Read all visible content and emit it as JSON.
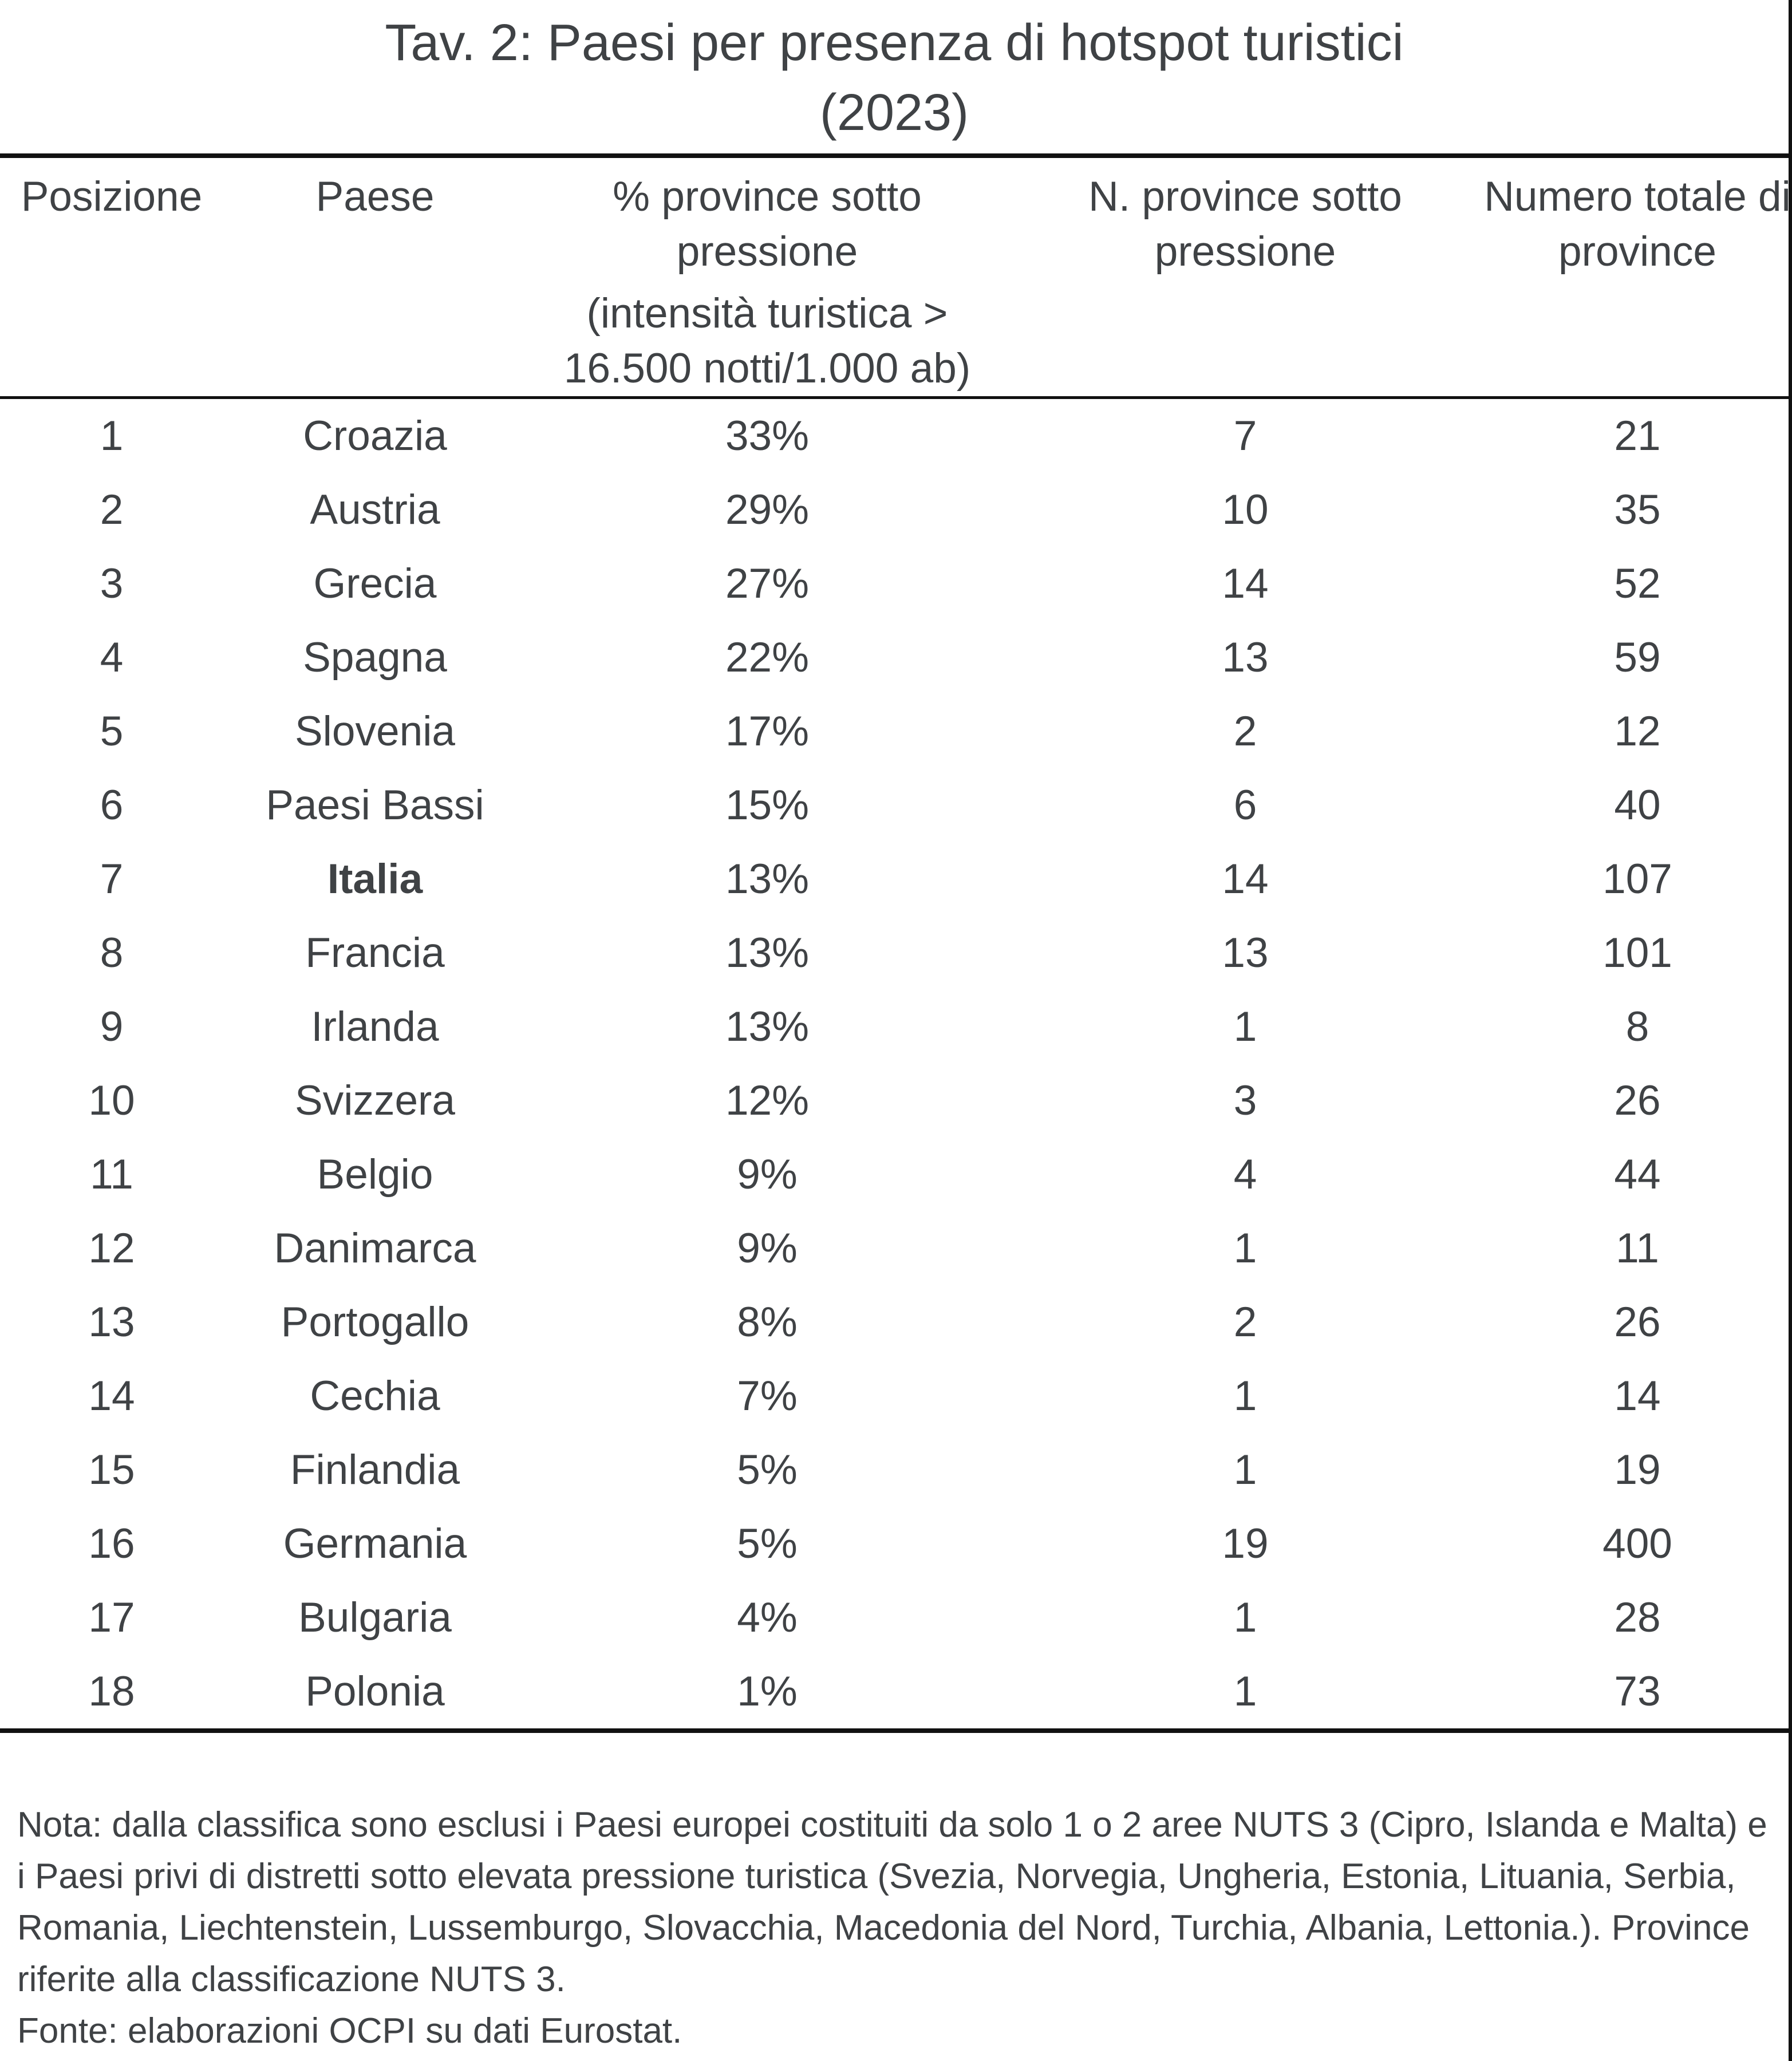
{
  "page": {
    "title_line1": "Tav. 2: Paesi per presenza di hotspot turistici",
    "title_line2": "(2023)"
  },
  "table": {
    "headers": [
      {
        "id": "posizione",
        "lines": [
          "Posizione"
        ]
      },
      {
        "id": "paese",
        "lines": [
          "Paese"
        ]
      },
      {
        "id": "pct",
        "lines": [
          "% province sotto",
          "pressione",
          "(intensità turistica >",
          "16.500 notti/1.000 ab)"
        ]
      },
      {
        "id": "n",
        "lines": [
          "N. province sotto",
          "pressione"
        ]
      },
      {
        "id": "tot",
        "lines": [
          "Numero totale di",
          "province"
        ]
      }
    ],
    "rows": [
      {
        "posizione": "1",
        "paese": "Croazia",
        "pct": "33%",
        "n": "7",
        "tot": "21",
        "bold": false
      },
      {
        "posizione": "2",
        "paese": "Austria",
        "pct": "29%",
        "n": "10",
        "tot": "35",
        "bold": false
      },
      {
        "posizione": "3",
        "paese": "Grecia",
        "pct": "27%",
        "n": "14",
        "tot": "52",
        "bold": false
      },
      {
        "posizione": "4",
        "paese": "Spagna",
        "pct": "22%",
        "n": "13",
        "tot": "59",
        "bold": false
      },
      {
        "posizione": "5",
        "paese": "Slovenia",
        "pct": "17%",
        "n": "2",
        "tot": "12",
        "bold": false
      },
      {
        "posizione": "6",
        "paese": "Paesi Bassi",
        "pct": "15%",
        "n": "6",
        "tot": "40",
        "bold": false
      },
      {
        "posizione": "7",
        "paese": "Italia",
        "pct": "13%",
        "n": "14",
        "tot": "107",
        "bold": true
      },
      {
        "posizione": "8",
        "paese": "Francia",
        "pct": "13%",
        "n": "13",
        "tot": "101",
        "bold": false
      },
      {
        "posizione": "9",
        "paese": "Irlanda",
        "pct": "13%",
        "n": "1",
        "tot": "8",
        "bold": false
      },
      {
        "posizione": "10",
        "paese": "Svizzera",
        "pct": "12%",
        "n": "3",
        "tot": "26",
        "bold": false
      },
      {
        "posizione": "11",
        "paese": "Belgio",
        "pct": "9%",
        "n": "4",
        "tot": "44",
        "bold": false
      },
      {
        "posizione": "12",
        "paese": "Danimarca",
        "pct": "9%",
        "n": "1",
        "tot": "11",
        "bold": false
      },
      {
        "posizione": "13",
        "paese": "Portogallo",
        "pct": "8%",
        "n": "2",
        "tot": "26",
        "bold": false
      },
      {
        "posizione": "14",
        "paese": "Cechia",
        "pct": "7%",
        "n": "1",
        "tot": "14",
        "bold": false
      },
      {
        "posizione": "15",
        "paese": "Finlandia",
        "pct": "5%",
        "n": "1",
        "tot": "19",
        "bold": false
      },
      {
        "posizione": "16",
        "paese": "Germania",
        "pct": "5%",
        "n": "19",
        "tot": "400",
        "bold": false
      },
      {
        "posizione": "17",
        "paese": "Bulgaria",
        "pct": "4%",
        "n": "1",
        "tot": "28",
        "bold": false
      },
      {
        "posizione": "18",
        "paese": "Polonia",
        "pct": "1%",
        "n": "1",
        "tot": "73",
        "bold": false
      }
    ]
  },
  "note": {
    "text": "Nota: dalla classifica sono esclusi i Paesi europei costituiti da solo 1 o 2 aree NUTS 3 (Cipro, Islanda e Malta) e i Paesi privi di distretti sotto elevata pressione turistica (Svezia, Norvegia, Ungheria, Estonia, Lituania, Serbia, Romania, Liechtenstein, Lussemburgo, Slovacchia, Macedonia del Nord, Turchia, Albania, Lettonia.). Province riferite alla classificazione NUTS 3.",
    "fonte": "Fonte: elaborazioni OCPI su dati Eurostat."
  },
  "colors": {
    "text": "#3f4245",
    "line": "#111111",
    "bg": "#ffffff"
  }
}
